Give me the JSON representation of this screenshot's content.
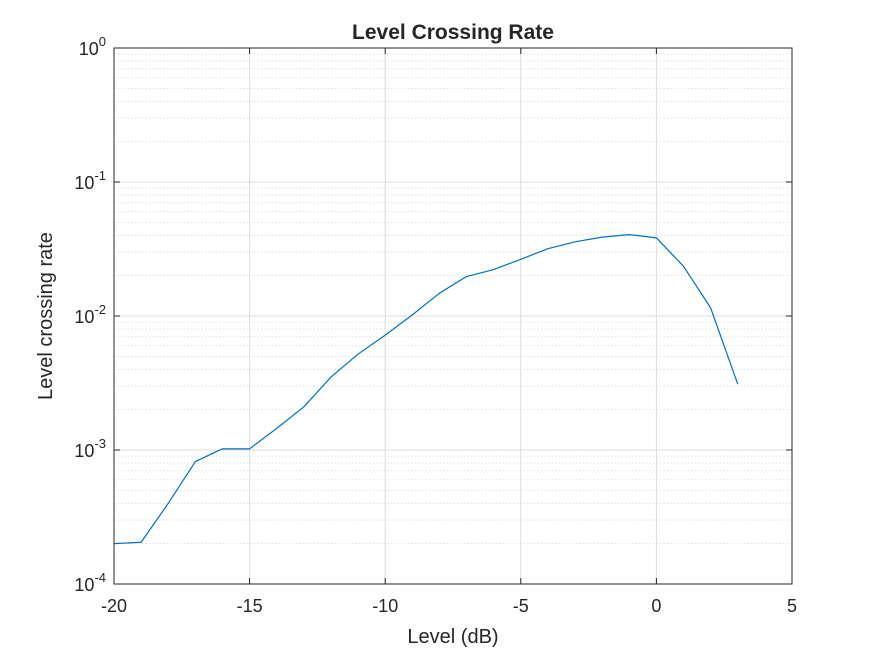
{
  "chart_data": {
    "type": "line",
    "title": "Level Crossing Rate",
    "xlabel": "Level (dB)",
    "ylabel": "Level crossing rate",
    "xlim": [
      -20,
      5
    ],
    "ylim": [
      0.0001,
      1
    ],
    "yscale": "log",
    "grid": true,
    "minor_grid": true,
    "xticks": [
      -20,
      -15,
      -10,
      -5,
      0,
      5
    ],
    "xtick_labels": [
      "-20",
      "-15",
      "-10",
      "-5",
      "0",
      "5"
    ],
    "yticks": [
      0.0001,
      0.001,
      0.01,
      0.1,
      1
    ],
    "ytick_labels": [
      {
        "base": "10",
        "exp": "-4"
      },
      {
        "base": "10",
        "exp": "-3"
      },
      {
        "base": "10",
        "exp": "-2"
      },
      {
        "base": "10",
        "exp": "-1"
      },
      {
        "base": "10",
        "exp": "0"
      }
    ],
    "series": [
      {
        "color": "#0072BD",
        "x": [
          -20,
          -19,
          -18,
          -17,
          -16,
          -15,
          -14,
          -13,
          -12,
          -11,
          -10,
          -9,
          -8,
          -7,
          -6,
          -5,
          -4,
          -3,
          -2,
          -1,
          0,
          1,
          2,
          3
        ],
        "y": [
          0.0002,
          0.000205,
          0.0004,
          0.00082,
          0.00102,
          0.00102,
          0.00145,
          0.0021,
          0.0035,
          0.0052,
          0.0072,
          0.0102,
          0.0148,
          0.0197,
          0.0222,
          0.0265,
          0.0318,
          0.0358,
          0.0388,
          0.0405,
          0.0383,
          0.0235,
          0.0115,
          0.0031
        ]
      }
    ]
  }
}
